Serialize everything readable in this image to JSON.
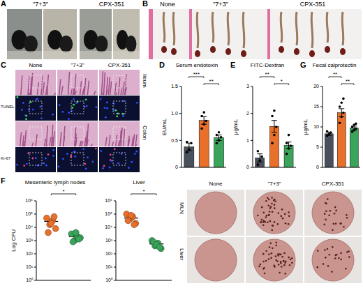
{
  "figure": {
    "A": {
      "letter": "A",
      "labels": [
        "\"7+3\"",
        "CPX-351"
      ]
    },
    "B": {
      "letter": "B",
      "labels": [
        "None",
        "\"7+3\"",
        "CPX-351"
      ]
    },
    "C": {
      "letter": "C",
      "columns": [
        "None",
        "\"7+3\"",
        "CPX-351"
      ],
      "tissues": [
        "Ileum",
        "Colon"
      ],
      "stains": [
        "TUNEL",
        "Ki-67"
      ]
    },
    "F": {
      "image_columns": [
        "None",
        "\"7+3\"",
        "CPX-351"
      ],
      "image_rows": [
        "MLN",
        "Liver"
      ]
    }
  },
  "chart_data": [
    {
      "panel": "D",
      "type": "bar",
      "title": "Serum endotoxin",
      "y_label": "EU/mL",
      "categories": [
        null,
        null,
        null
      ],
      "values": [
        0.38,
        0.87,
        0.55
      ],
      "errors": [
        0.07,
        0.07,
        0.05
      ],
      "points": [
        [
          0.28,
          0.33,
          0.45,
          0.47
        ],
        [
          0.72,
          0.8,
          0.86,
          0.95,
          1.02
        ],
        [
          0.45,
          0.5,
          0.56,
          0.6,
          0.65
        ]
      ],
      "colors": [
        "#4a4f5c",
        "#e8702a",
        "#3aa55a"
      ],
      "ylim": [
        0,
        1.5
      ],
      "yticks": [
        0,
        0.5,
        {
          "value": 1,
          "label": "1.0"
        },
        1.5
      ],
      "significance": [
        {
          "from": 0,
          "to": 1,
          "text": "***"
        },
        {
          "from": 1,
          "to": 2,
          "text": "**"
        }
      ],
      "tick_labels": "y"
    },
    {
      "panel": "E",
      "type": "bar",
      "title": "FITC-Dextran",
      "y_label": "µg/mL",
      "categories": [
        null,
        null,
        null
      ],
      "values": [
        0.35,
        1.52,
        0.82
      ],
      "errors": [
        0.15,
        0.22,
        0.12
      ],
      "points": [
        [
          0.1,
          0.25,
          0.4,
          0.6
        ],
        [
          0.9,
          1.2,
          1.5,
          1.9,
          2.1
        ],
        [
          0.5,
          0.7,
          0.8,
          0.9,
          1.2
        ]
      ],
      "colors": [
        "#4a4f5c",
        "#e8702a",
        "#3aa55a"
      ],
      "ylim": [
        0,
        3
      ],
      "yticks": [
        0,
        1,
        2,
        3
      ],
      "significance": [
        {
          "from": 0,
          "to": 1,
          "text": "**"
        },
        {
          "from": 1,
          "to": 2,
          "text": "*"
        }
      ],
      "tick_labels": "y"
    },
    {
      "panel": "G",
      "type": "bar",
      "title": "Fecal calprotectin",
      "y_label": "µg/mL",
      "categories": [
        null,
        null,
        null
      ],
      "values": [
        8.3,
        13.5,
        9.7
      ],
      "errors": [
        0.4,
        1,
        0.5
      ],
      "points": [
        [
          7.8,
          8.2,
          8.6,
          8.9
        ],
        [
          11,
          12.5,
          13.5,
          15,
          16,
          17
        ],
        [
          8.8,
          9.2,
          9.6,
          10,
          10.5,
          10.8
        ]
      ],
      "colors": [
        "#4a4f5c",
        "#e8702a",
        "#3aa55a"
      ],
      "ylim": [
        0,
        20
      ],
      "yticks": [
        0,
        5,
        10,
        15,
        20
      ],
      "significance": [
        {
          "from": 0,
          "to": 1,
          "text": "**"
        },
        {
          "from": 1,
          "to": 2,
          "text": "**"
        }
      ],
      "tick_labels": "y"
    },
    {
      "panel": "F",
      "type": "scatter",
      "title": "Mesenteric lymph nodes",
      "y_label": "Log CFU",
      "log": "y",
      "ylim": [
        1,
        1000000
      ],
      "yticks": [
        {
          "value": 1,
          "label": "10⁰"
        },
        {
          "value": 10,
          "label": "10¹"
        },
        {
          "value": 100,
          "label": "10²"
        },
        {
          "value": 1000,
          "label": "10³"
        },
        {
          "value": 10000,
          "label": "10⁴"
        },
        {
          "value": 100000,
          "label": "10⁵"
        },
        {
          "value": 1000000,
          "label": "10⁶"
        }
      ],
      "tick_labels": "y",
      "series": [
        {
          "color": "#e8702a",
          "marker": "circle",
          "values": [
            50000,
            16000,
            32000,
            8000,
            4000,
            20000,
            63000
          ],
          "mean": 28000,
          "error": 8000
        },
        {
          "color": "#3aa55a",
          "marker": "circle",
          "values": [
            3200,
            1000,
            2000,
            1600,
            800,
            4000,
            1300
          ],
          "mean": 2000,
          "error": 450
        }
      ],
      "significance": [
        {
          "from": 0,
          "to": 1,
          "text": "*"
        }
      ]
    },
    {
      "type": "scatter",
      "title": "Liver",
      "log": "y",
      "ylim": [
        1,
        1000000
      ],
      "yticks": [
        {
          "value": 1,
          "label": "10⁰"
        },
        {
          "value": 10,
          "label": "10¹"
        },
        {
          "value": 100,
          "label": "10²"
        },
        {
          "value": 1000,
          "label": "10³"
        },
        {
          "value": 10000,
          "label": "10⁴"
        },
        {
          "value": 100000,
          "label": "10⁵"
        },
        {
          "value": 1000000,
          "label": "10⁶"
        }
      ],
      "tick_labels": "y",
      "series": [
        {
          "color": "#e8702a",
          "marker": "circle",
          "values": [
            100000,
            40000,
            63000,
            20000,
            32000,
            80000,
            16000
          ],
          "mean": 50000,
          "error": 12000
        },
        {
          "color": "#3aa55a",
          "marker": "circle",
          "values": [
            1000,
            400,
            630,
            250,
            800,
            500,
            320
          ],
          "mean": 560,
          "error": 100
        }
      ],
      "significance": [
        {
          "from": 0,
          "to": 1,
          "text": "*"
        }
      ]
    }
  ]
}
